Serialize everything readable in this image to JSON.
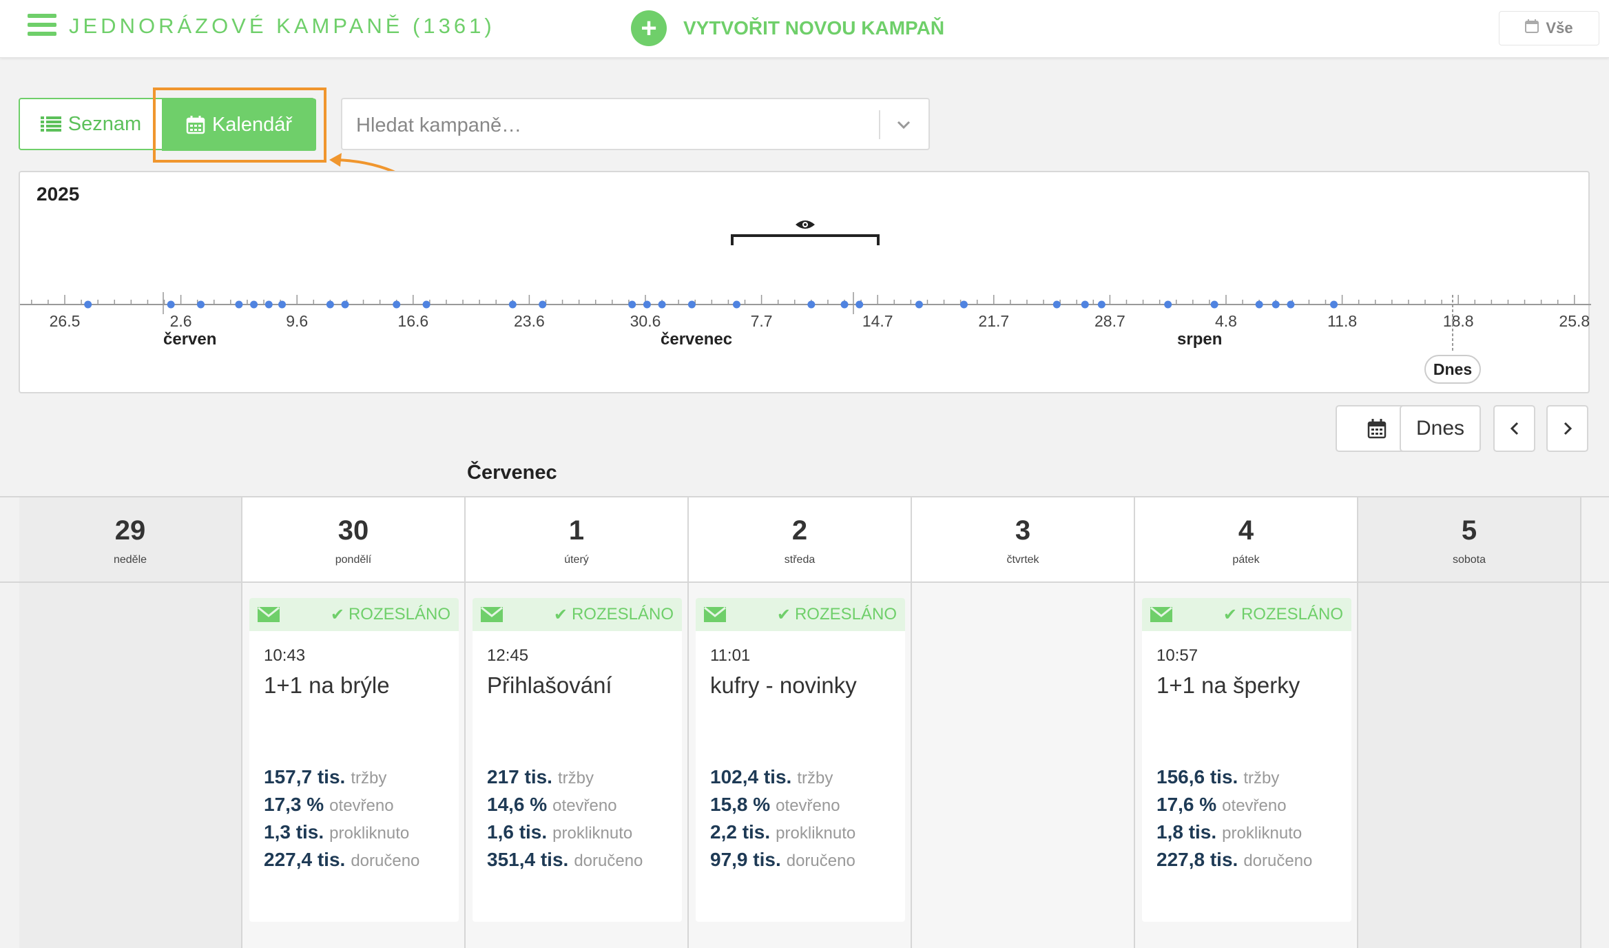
{
  "header": {
    "title": "JEDNORÁZOVÉ KAMPANĚ (1361)",
    "create_label": "VYTVOŘIT NOVOU KAMPAŇ",
    "filter_label": "Vše",
    "accent": "#6fcf6a"
  },
  "toolbar": {
    "list_label": "Seznam",
    "calendar_label": "Kalendář",
    "search_placeholder": "Hledat kampaně…",
    "highlight_color": "#f0962e"
  },
  "timeline": {
    "year": "2025",
    "date_labels": [
      "26.5",
      "2.6",
      "9.6",
      "16.6",
      "23.6",
      "30.6",
      "7.7",
      "14.7",
      "21.7",
      "28.7",
      "4.8",
      "11.8",
      "18.8",
      "25.8"
    ],
    "month_labels": [
      "červen",
      "červenec",
      "srpen"
    ],
    "today_label": "Dnes",
    "dot_color": "#4f83e0"
  },
  "nav": {
    "today_label": "Dnes",
    "prev_icon": "chevron-left-icon",
    "next_icon": "chevron-right-icon",
    "calendar_icon": "calendar-icon"
  },
  "month_title": "Červenec",
  "days": [
    {
      "num": "29",
      "name": "neděle"
    },
    {
      "num": "30",
      "name": "pondělí"
    },
    {
      "num": "1",
      "name": "úterý"
    },
    {
      "num": "2",
      "name": "středa"
    },
    {
      "num": "3",
      "name": "čtvrtek"
    },
    {
      "num": "4",
      "name": "pátek"
    },
    {
      "num": "5",
      "name": "sobota"
    }
  ],
  "campaigns": [
    {
      "status": "ROZESLÁNO",
      "time": "10:43",
      "name": "1+1 na brýle",
      "stats": [
        {
          "value": "157,7 tis.",
          "label": "tržby"
        },
        {
          "value": "17,3 %",
          "label": "otevřeno"
        },
        {
          "value": "1,3 tis.",
          "label": "prokliknuto"
        },
        {
          "value": "227,4 tis.",
          "label": "doručeno"
        }
      ]
    },
    {
      "status": "ROZESLÁNO",
      "time": "12:45",
      "name": "Přihlašování",
      "stats": [
        {
          "value": "217 tis.",
          "label": "tržby"
        },
        {
          "value": "14,6 %",
          "label": "otevřeno"
        },
        {
          "value": "1,6 tis.",
          "label": "prokliknuto"
        },
        {
          "value": "351,4 tis.",
          "label": "doručeno"
        }
      ]
    },
    {
      "status": "ROZESLÁNO",
      "time": "11:01",
      "name": "kufry - novinky",
      "stats": [
        {
          "value": "102,4 tis.",
          "label": "tržby"
        },
        {
          "value": "15,8 %",
          "label": "otevřeno"
        },
        {
          "value": "2,2 tis.",
          "label": "prokliknuto"
        },
        {
          "value": "97,9 tis.",
          "label": "doručeno"
        }
      ]
    },
    {
      "status": "ROZESLÁNO",
      "time": "10:57",
      "name": "1+1 na šperky",
      "stats": [
        {
          "value": "156,6 tis.",
          "label": "tržby"
        },
        {
          "value": "17,6 %",
          "label": "otevřeno"
        },
        {
          "value": "1,8 tis.",
          "label": "prokliknuto"
        },
        {
          "value": "227,8 tis.",
          "label": "doručeno"
        }
      ]
    }
  ]
}
